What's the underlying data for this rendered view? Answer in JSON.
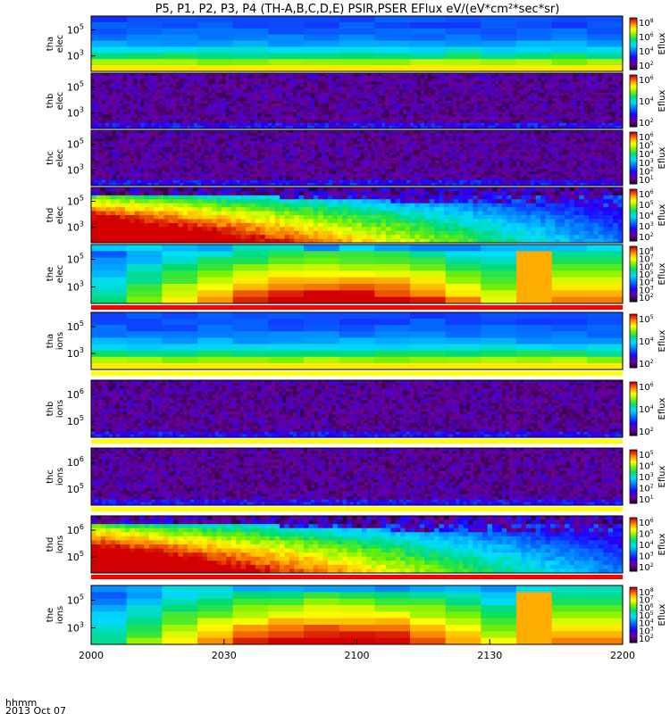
{
  "title": "P5, P1, P2, P3, P4 (TH-A,B,C,D,E) PSIR,PSER EFlux eV/(eV*cm²*sec*sr)",
  "x_ticks": [
    "2000",
    "2030",
    "2100",
    "2130",
    "2200"
  ],
  "footer": {
    "unit_label": "hhmm",
    "date_label": "2013 Oct 07"
  },
  "colorbar_label": "Eflux",
  "chart_data": {
    "type": "heatmap",
    "x_range_hhmm": [
      "2000",
      "2200"
    ],
    "panels": [
      {
        "id": "tha-elec",
        "label": [
          "tha",
          "elec"
        ],
        "y_ticks": [
          {
            "base": "10",
            "exp": "5"
          },
          {
            "base": "10",
            "exp": "3"
          }
        ],
        "cbar_ticks": [
          {
            "base": "10",
            "exp": "8"
          },
          {
            "base": "10",
            "exp": "6"
          },
          {
            "base": "10",
            "exp": "4"
          },
          {
            "base": "10",
            "exp": "2"
          }
        ],
        "pattern": "steady-bands"
      },
      {
        "id": "thb-elec",
        "label": [
          "thb",
          "elec"
        ],
        "y_ticks": [
          {
            "base": "10",
            "exp": "5"
          },
          {
            "base": "10",
            "exp": "3"
          }
        ],
        "cbar_ticks": [
          {
            "base": "10",
            "exp": "6"
          },
          {
            "base": "10",
            "exp": "4"
          },
          {
            "base": "10",
            "exp": "2"
          }
        ],
        "pattern": "noise"
      },
      {
        "id": "thc-elec",
        "label": [
          "thc",
          "elec"
        ],
        "y_ticks": [
          {
            "base": "10",
            "exp": "5"
          },
          {
            "base": "10",
            "exp": "3"
          }
        ],
        "cbar_ticks": [
          {
            "base": "10",
            "exp": "6"
          },
          {
            "base": "10",
            "exp": "5"
          },
          {
            "base": "10",
            "exp": "4"
          },
          {
            "base": "10",
            "exp": "3"
          },
          {
            "base": "10",
            "exp": "2"
          },
          {
            "base": "10",
            "exp": "1"
          }
        ],
        "pattern": "noise"
      },
      {
        "id": "thd-elec",
        "label": [
          "thd",
          "elec"
        ],
        "y_ticks": [
          {
            "base": "10",
            "exp": "5"
          },
          {
            "base": "10",
            "exp": "3"
          }
        ],
        "cbar_ticks": [
          {
            "base": "10",
            "exp": "6"
          },
          {
            "base": "10",
            "exp": "5"
          },
          {
            "base": "10",
            "exp": "4"
          },
          {
            "base": "10",
            "exp": "3"
          },
          {
            "base": "10",
            "exp": "2"
          }
        ],
        "pattern": "decay"
      },
      {
        "id": "the-elec",
        "label": [
          "the",
          "elec"
        ],
        "y_ticks": [
          {
            "base": "10",
            "exp": "5"
          },
          {
            "base": "10",
            "exp": "3"
          }
        ],
        "cbar_ticks": [
          {
            "base": "10",
            "exp": "8"
          },
          {
            "base": "10",
            "exp": "7"
          },
          {
            "base": "10",
            "exp": "6"
          },
          {
            "base": "10",
            "exp": "5"
          },
          {
            "base": "10",
            "exp": "4"
          },
          {
            "base": "10",
            "exp": "3"
          },
          {
            "base": "10",
            "exp": "2"
          }
        ],
        "pattern": "hot"
      },
      {
        "id": "tha-ions",
        "label": [
          "tha",
          "ions"
        ],
        "y_ticks": [
          {
            "base": "10",
            "exp": "5"
          },
          {
            "base": "10",
            "exp": "3"
          }
        ],
        "cbar_ticks": [
          {
            "base": "10",
            "exp": "5"
          },
          {
            "base": "10",
            "exp": "4"
          },
          {
            "base": "10",
            "exp": "2"
          }
        ],
        "pattern": "steady-bands"
      },
      {
        "id": "thb-ions",
        "label": [
          "thb",
          "ions"
        ],
        "y_ticks": [
          {
            "base": "10",
            "exp": "6"
          },
          {
            "base": "10",
            "exp": "5"
          }
        ],
        "cbar_ticks": [
          {
            "base": "10",
            "exp": "6"
          },
          {
            "base": "10",
            "exp": "4"
          },
          {
            "base": "10",
            "exp": "2"
          }
        ],
        "pattern": "noise"
      },
      {
        "id": "thc-ions",
        "label": [
          "thc",
          "ions"
        ],
        "y_ticks": [
          {
            "base": "10",
            "exp": "6"
          },
          {
            "base": "10",
            "exp": "5"
          }
        ],
        "cbar_ticks": [
          {
            "base": "10",
            "exp": "5"
          },
          {
            "base": "10",
            "exp": "4"
          },
          {
            "base": "10",
            "exp": "3"
          },
          {
            "base": "10",
            "exp": "2"
          },
          {
            "base": "10",
            "exp": "1"
          }
        ],
        "pattern": "noise"
      },
      {
        "id": "thd-ions",
        "label": [
          "thd",
          "ions"
        ],
        "y_ticks": [
          {
            "base": "10",
            "exp": "6"
          },
          {
            "base": "10",
            "exp": "5"
          }
        ],
        "cbar_ticks": [
          {
            "base": "10",
            "exp": "6"
          },
          {
            "base": "10",
            "exp": "5"
          },
          {
            "base": "10",
            "exp": "4"
          },
          {
            "base": "10",
            "exp": "3"
          },
          {
            "base": "10",
            "exp": "2"
          }
        ],
        "pattern": "decay"
      },
      {
        "id": "the-ions",
        "label": [
          "the",
          "ions"
        ],
        "y_ticks": [
          {
            "base": "10",
            "exp": "5"
          },
          {
            "base": "10",
            "exp": "3"
          }
        ],
        "cbar_ticks": [
          {
            "base": "10",
            "exp": "8"
          },
          {
            "base": "10",
            "exp": "7"
          },
          {
            "base": "10",
            "exp": "6"
          },
          {
            "base": "10",
            "exp": "5"
          },
          {
            "base": "10",
            "exp": "4"
          },
          {
            "base": "10",
            "exp": "3"
          },
          {
            "base": "10",
            "exp": "2"
          }
        ],
        "pattern": "hot"
      }
    ]
  }
}
